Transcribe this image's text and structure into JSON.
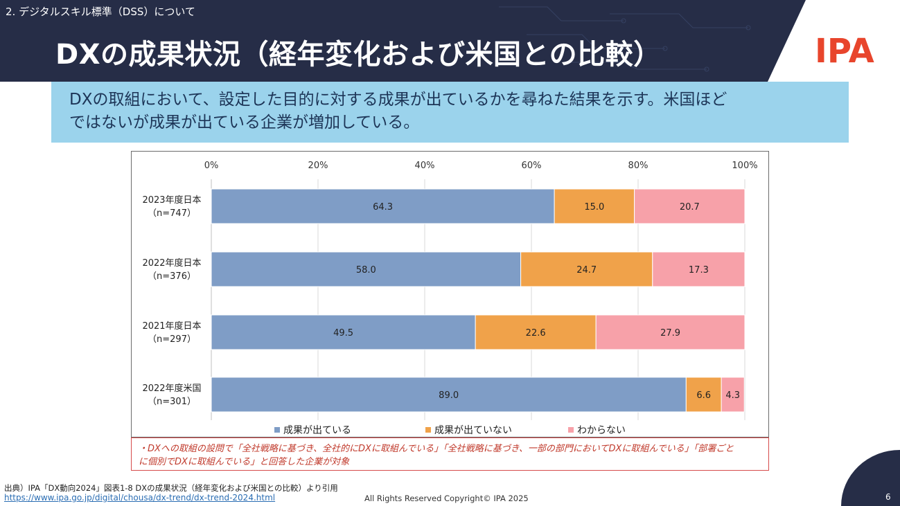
{
  "header": {
    "section_label": "2. デジタルスキル標準（DSS）について",
    "title": "DXの成果状況（経年変化および米国との比較）",
    "logo": "IPA"
  },
  "summary": {
    "line1": "DXの取組において、設定した目的に対する成果が出ているかを尋ねた結果を示す。米国ほど",
    "line2": "ではないが成果が出ている企業が増加している。"
  },
  "colors": {
    "header_bg": "#262d47",
    "summary_bg": "#9bd3ec",
    "logo": "#e8452c",
    "series": [
      "#7f9dc6",
      "#f0a24a",
      "#f7a1a9"
    ]
  },
  "chart_data": {
    "type": "bar",
    "orientation": "horizontal",
    "stacked": true,
    "categories": [
      [
        "2023年度日本",
        "（n=747）"
      ],
      [
        "2022年度日本",
        "（n=376）"
      ],
      [
        "2021年度日本",
        "（n=297）"
      ],
      [
        "2022年度米国",
        "（n=301）"
      ]
    ],
    "series": [
      {
        "name": "成果が出ている",
        "values": [
          64.3,
          58.0,
          49.5,
          89.0
        ]
      },
      {
        "name": "成果が出ていない",
        "values": [
          15.0,
          24.7,
          22.6,
          6.6
        ]
      },
      {
        "name": "わからない",
        "values": [
          20.7,
          17.3,
          27.9,
          4.3
        ]
      }
    ],
    "data_labels": [
      [
        "64.3",
        "15.0",
        "20.7"
      ],
      [
        "58.0",
        "24.7",
        "17.3"
      ],
      [
        "49.5",
        "22.6",
        "27.9"
      ],
      [
        "89.0",
        "6.6",
        "4.3"
      ]
    ],
    "xlim": [
      0,
      100
    ],
    "xticks": [
      0,
      20,
      40,
      60,
      80,
      100
    ],
    "xtick_labels": [
      "0%",
      "20%",
      "40%",
      "60%",
      "80%",
      "100%"
    ],
    "grid": true,
    "axis_position": "top",
    "legend_position": "bottom"
  },
  "note": {
    "line1": "・DXへの取組の設問で「全社戦略に基づき、全社的にDXに取組んでいる」「全社戦略に基づき、一部の部門においてDXに取組んでいる」「部署ごと",
    "line2": "に個別でDXに取組んでいる」と回答した企業が対象"
  },
  "footer": {
    "source": "出典）IPA「DX動向2024」図表1-8 DXの成果状況（経年変化および米国との比較）より引用",
    "url": "https://www.ipa.go.jp/digital/chousa/dx-trend/dx-trend-2024.html",
    "copyright": "All Rights Reserved Copyright© IPA 2025",
    "page_number": "6"
  }
}
